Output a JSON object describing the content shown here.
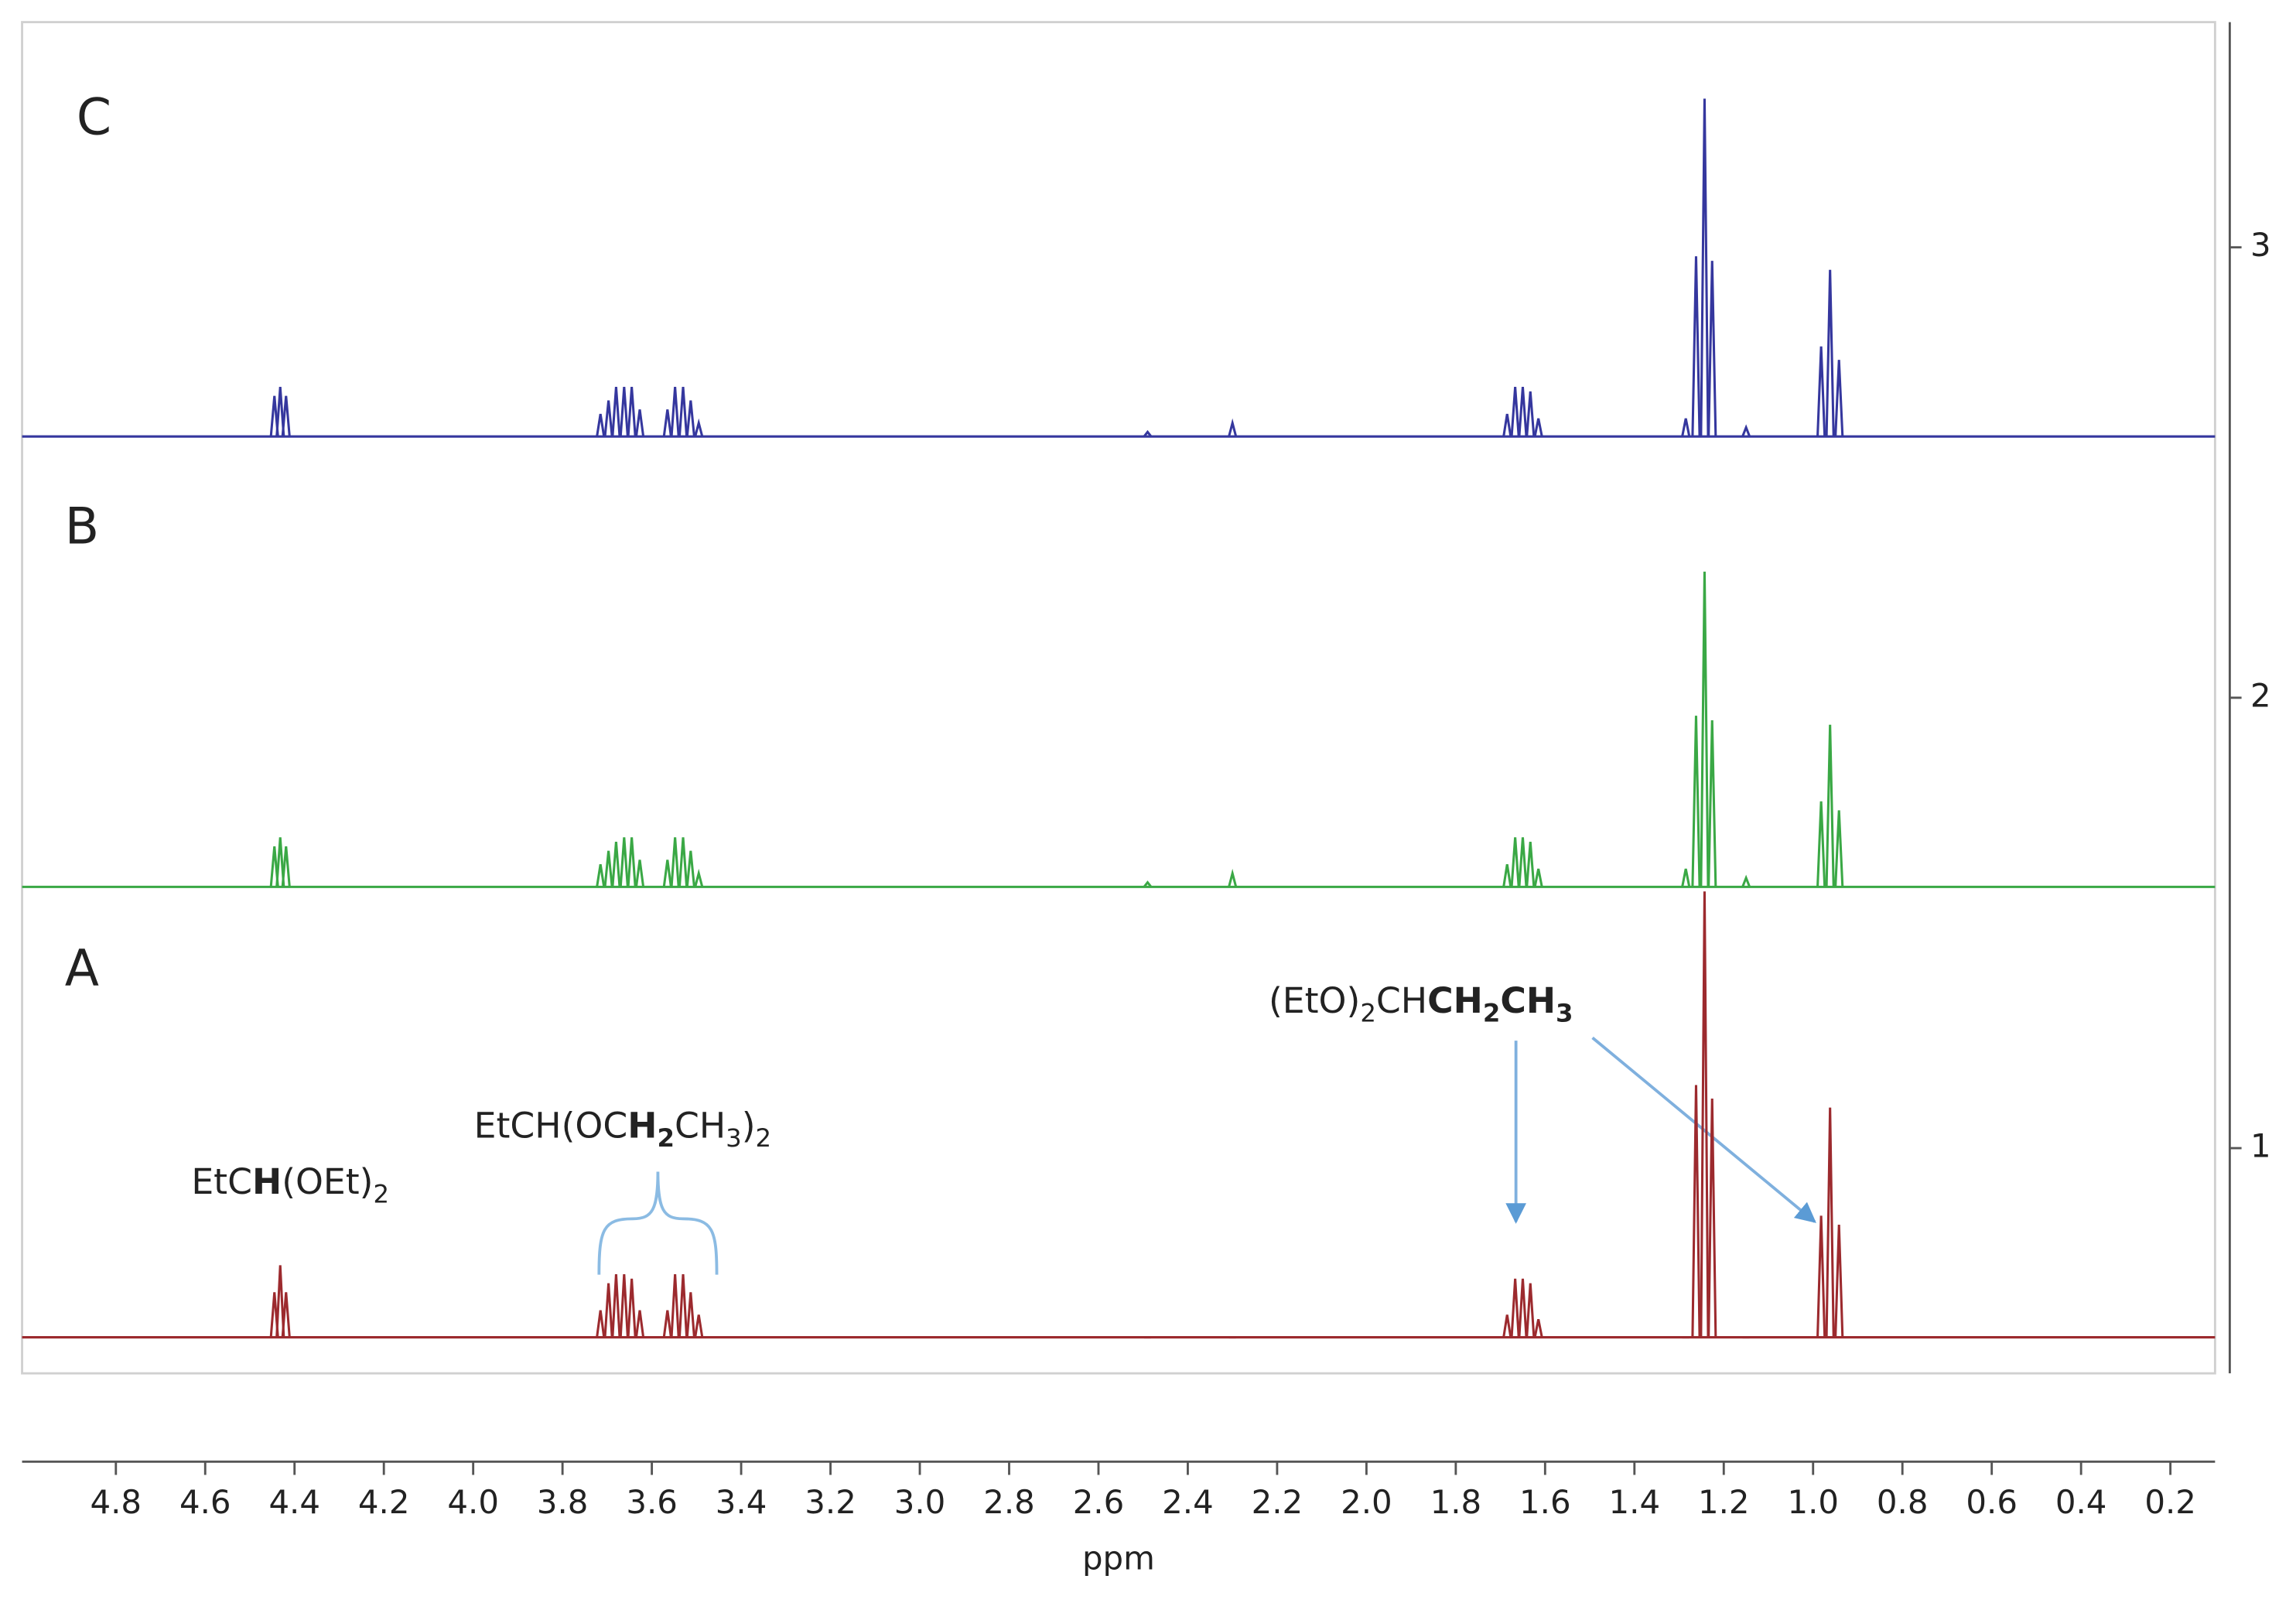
{
  "chart_data": {
    "type": "line",
    "xlabel": "ppm",
    "xlim": [
      5.01,
      0.1
    ],
    "xticks": [
      4.8,
      4.6,
      4.4,
      4.2,
      {
        "value": 4,
        "label": "4.0"
      },
      3.8,
      3.6,
      3.4,
      3.2,
      {
        "value": 3,
        "label": "3.0"
      },
      2.8,
      2.6,
      2.4,
      2.2,
      {
        "value": 2,
        "label": "2.0"
      },
      1.8,
      1.6,
      1.4,
      1.2,
      {
        "value": 1,
        "label": "1.0"
      },
      0.8,
      0.6,
      0.4,
      0.2
    ],
    "ylim": [
      0.5,
      3.5
    ],
    "yticks": [
      1,
      2,
      3
    ],
    "yaxis_position": "right",
    "x": [
      4.445,
      4.432,
      4.419,
      3.715,
      3.697,
      3.68,
      3.662,
      3.645,
      3.627,
      3.565,
      3.548,
      3.53,
      3.513,
      3.495,
      2.49,
      2.3,
      1.685,
      1.667,
      1.65,
      1.633,
      1.615,
      1.285,
      1.262,
      1.243,
      1.226,
      1.15,
      0.982,
      0.962,
      0.942
    ],
    "series": [
      {
        "name": "A",
        "color": "#9c2a2e",
        "baseline": 0.58,
        "values": [
          0.68,
          0.74,
          0.68,
          0.64,
          0.7,
          0.72,
          0.72,
          0.71,
          0.64,
          0.64,
          0.72,
          0.72,
          0.68,
          0.63,
          0.58,
          0.58,
          0.63,
          0.71,
          0.71,
          0.7,
          0.62,
          0.58,
          1.14,
          1.57,
          1.11,
          0.58,
          0.85,
          1.09,
          0.83
        ]
      },
      {
        "name": "B",
        "color": "#3aa845",
        "baseline": 1.58,
        "values": [
          1.67,
          1.69,
          1.67,
          1.63,
          1.66,
          1.68,
          1.69,
          1.69,
          1.64,
          1.64,
          1.69,
          1.69,
          1.66,
          1.61,
          1.59,
          1.61,
          1.63,
          1.69,
          1.69,
          1.68,
          1.62,
          1.62,
          1.96,
          2.28,
          1.95,
          1.6,
          1.77,
          1.94,
          1.75
        ]
      },
      {
        "name": "C",
        "color": "#35379e",
        "baseline": 2.58,
        "values": [
          2.67,
          2.69,
          2.67,
          2.63,
          2.66,
          2.69,
          2.69,
          2.69,
          2.64,
          2.64,
          2.69,
          2.69,
          2.66,
          2.61,
          2.59,
          2.61,
          2.63,
          2.69,
          2.69,
          2.68,
          2.62,
          2.62,
          2.98,
          3.33,
          2.97,
          2.6,
          2.78,
          2.95,
          2.75
        ]
      }
    ],
    "annotations": [
      {
        "parts": [
          "EtC",
          "H",
          "(OEt)",
          "2"
        ]
      },
      {
        "parts": [
          "EtCH(OC",
          "H",
          "2",
          "CH",
          "3",
          ")",
          "2"
        ]
      },
      {
        "parts": [
          "(EtO)",
          "2",
          "CH",
          "CH",
          "2",
          "CH",
          "3"
        ]
      }
    ]
  }
}
